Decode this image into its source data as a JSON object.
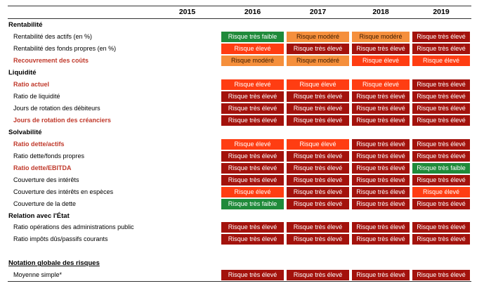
{
  "years": [
    "2015",
    "2016",
    "2017",
    "2018",
    "2019"
  ],
  "colors": {
    "very_high": "#a3120c",
    "high": "#ff3d12",
    "moderate": "#f58f3c",
    "very_low": "#1f8a3a",
    "highlight_label": "#c0392b"
  },
  "rows": [
    {
      "type": "section",
      "label": "Rentabilité"
    },
    {
      "type": "data",
      "label": "Rentabilité des actifs (en %)",
      "highlight": false,
      "cells": [
        "",
        "Risque très faible",
        "Risque modéré",
        "Risque modéré",
        "Risque très élevé"
      ]
    },
    {
      "type": "data",
      "label": "Rentabilité des fonds propres (en %)",
      "highlight": false,
      "cells": [
        "",
        "Risque élevé",
        "Risque très élevé",
        "Risque très élevé",
        "Risque très élevé"
      ]
    },
    {
      "type": "data",
      "label": "Recouvrement des coûts",
      "highlight": true,
      "cells": [
        "",
        "Risque modéré",
        "Risque modéré",
        "Risque élevé",
        "Risque élevé"
      ]
    },
    {
      "type": "section",
      "label": "Liquidité"
    },
    {
      "type": "data",
      "label": "Ratio actuel",
      "highlight": true,
      "cells": [
        "",
        "Risque élevé",
        "Risque élevé",
        "Risque élevé",
        "Risque très élevé"
      ]
    },
    {
      "type": "data",
      "label": "Ratio de liquidité",
      "highlight": false,
      "cells": [
        "",
        "Risque très élevé",
        "Risque très élevé",
        "Risque très élevé",
        "Risque très élevé"
      ]
    },
    {
      "type": "data",
      "label": "Jours de rotation des débiteurs",
      "highlight": false,
      "cells": [
        "",
        "Risque très élevé",
        "Risque très élevé",
        "Risque très élevé",
        "Risque très élevé"
      ]
    },
    {
      "type": "data",
      "label": "Jours de rotation des créanciers",
      "highlight": true,
      "cells": [
        "",
        "Risque très élevé",
        "Risque très élevé",
        "Risque très élevé",
        "Risque très élevé"
      ]
    },
    {
      "type": "section",
      "label": "Solvabilité"
    },
    {
      "type": "data",
      "label": "Ratio dette/actifs",
      "highlight": true,
      "cells": [
        "",
        "Risque élevé",
        "Risque élevé",
        "Risque très élevé",
        "Risque très élevé"
      ]
    },
    {
      "type": "data",
      "label": "Ratio dette/fonds propres",
      "highlight": false,
      "cells": [
        "",
        "Risque très élevé",
        "Risque très élevé",
        "Risque très élevé",
        "Risque très élevé"
      ]
    },
    {
      "type": "data",
      "label": "Ratio dette/EBITDA",
      "highlight": true,
      "cells": [
        "",
        "Risque très élevé",
        "Risque très élevé",
        "Risque très élevé",
        "Risque très faible"
      ]
    },
    {
      "type": "data",
      "label": "Couverture des intérêts",
      "highlight": false,
      "cells": [
        "",
        "Risque très élevé",
        "Risque très élevé",
        "Risque très élevé",
        "Risque très élevé"
      ]
    },
    {
      "type": "data",
      "label": "Couverture des intérêts en espèces",
      "highlight": false,
      "cells": [
        "",
        "Risque élevé",
        "Risque très élevé",
        "Risque très élevé",
        "Risque élevé"
      ]
    },
    {
      "type": "data",
      "label": "Couverture de la dette",
      "highlight": false,
      "cells": [
        "",
        "Risque très faible",
        "Risque très élevé",
        "Risque très élevé",
        "Risque très élevé"
      ]
    },
    {
      "type": "section",
      "label": "Relation avec l'État"
    },
    {
      "type": "data",
      "label": "Ratio opérations des administrations public",
      "highlight": false,
      "cells": [
        "",
        "Risque très élevé",
        "Risque très élevé",
        "Risque très élevé",
        "Risque très élevé"
      ]
    },
    {
      "type": "data",
      "label": "Ratio impôts dûs/passifs courants",
      "highlight": false,
      "cells": [
        "",
        "Risque très élevé",
        "Risque très élevé",
        "Risque très élevé",
        "Risque très élevé"
      ]
    },
    {
      "type": "spacer",
      "label": ""
    },
    {
      "type": "underline",
      "label": "Notation globale des risques"
    },
    {
      "type": "data",
      "label": "Moyenne simple*",
      "highlight": false,
      "last": true,
      "cells": [
        "",
        "Risque très élevé",
        "Risque très élevé",
        "Risque très élevé",
        "Risque très élevé"
      ]
    }
  ]
}
